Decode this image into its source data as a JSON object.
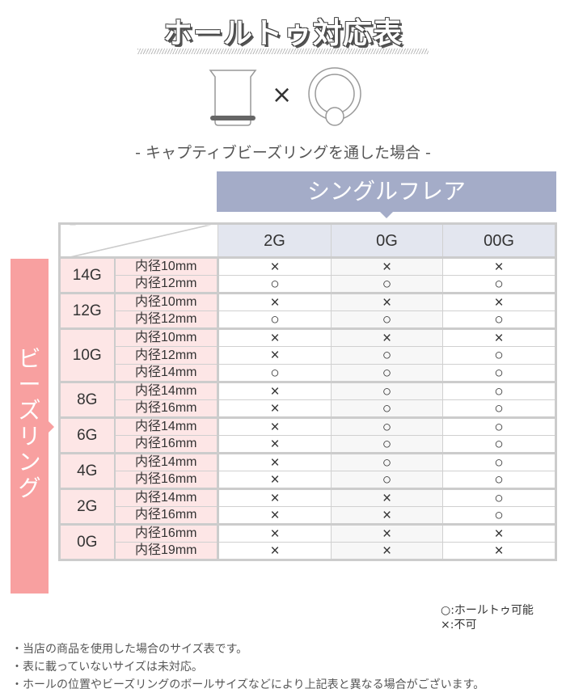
{
  "title": "ホールトゥ対応表",
  "times_symbol": "×",
  "subtitle": "- キャプティブビーズリングを通した場合 -",
  "banner": "シングルフレア",
  "side_label": [
    "ビ",
    "ー",
    "ズ",
    "リ",
    "ン",
    "グ"
  ],
  "columns": [
    "2G",
    "0G",
    "00G"
  ],
  "colors": {
    "banner": "#a4acc8",
    "side": "#f8a0a0",
    "row_header": "#fde6e6"
  },
  "groups": [
    {
      "gauge": "14G",
      "rows": [
        {
          "size": "内径10mm",
          "marks": [
            "×",
            "×",
            "×"
          ]
        },
        {
          "size": "内径12mm",
          "marks": [
            "○",
            "○",
            "○"
          ]
        }
      ]
    },
    {
      "gauge": "12G",
      "rows": [
        {
          "size": "内径10mm",
          "marks": [
            "×",
            "×",
            "×"
          ]
        },
        {
          "size": "内径12mm",
          "marks": [
            "○",
            "○",
            "○"
          ]
        }
      ]
    },
    {
      "gauge": "10G",
      "rows": [
        {
          "size": "内径10mm",
          "marks": [
            "×",
            "×",
            "×"
          ]
        },
        {
          "size": "内径12mm",
          "marks": [
            "×",
            "○",
            "○"
          ]
        },
        {
          "size": "内径14mm",
          "marks": [
            "○",
            "○",
            "○"
          ]
        }
      ]
    },
    {
      "gauge": "8G",
      "rows": [
        {
          "size": "内径14mm",
          "marks": [
            "×",
            "○",
            "○"
          ]
        },
        {
          "size": "内径16mm",
          "marks": [
            "×",
            "○",
            "○"
          ]
        }
      ]
    },
    {
      "gauge": "6G",
      "rows": [
        {
          "size": "内径14mm",
          "marks": [
            "×",
            "○",
            "○"
          ]
        },
        {
          "size": "内径16mm",
          "marks": [
            "×",
            "○",
            "○"
          ]
        }
      ]
    },
    {
      "gauge": "4G",
      "rows": [
        {
          "size": "内径14mm",
          "marks": [
            "×",
            "○",
            "○"
          ]
        },
        {
          "size": "内径16mm",
          "marks": [
            "×",
            "○",
            "○"
          ]
        }
      ]
    },
    {
      "gauge": "2G",
      "rows": [
        {
          "size": "内径14mm",
          "marks": [
            "×",
            "×",
            "○"
          ]
        },
        {
          "size": "内径16mm",
          "marks": [
            "×",
            "×",
            "○"
          ]
        }
      ]
    },
    {
      "gauge": "0G",
      "rows": [
        {
          "size": "内径16mm",
          "marks": [
            "×",
            "×",
            "×"
          ]
        },
        {
          "size": "内径19mm",
          "marks": [
            "×",
            "×",
            "×"
          ]
        }
      ]
    }
  ],
  "legend": [
    "○:ホールトゥ可能",
    "×:不可"
  ],
  "notes": [
    "・当店の商品を使用した場合のサイズ表です。",
    "・表に載っていないサイズは未対応。",
    "・ホールの位置やビーズリングのボールサイズなどにより上記表と異なる場合がございます。"
  ]
}
